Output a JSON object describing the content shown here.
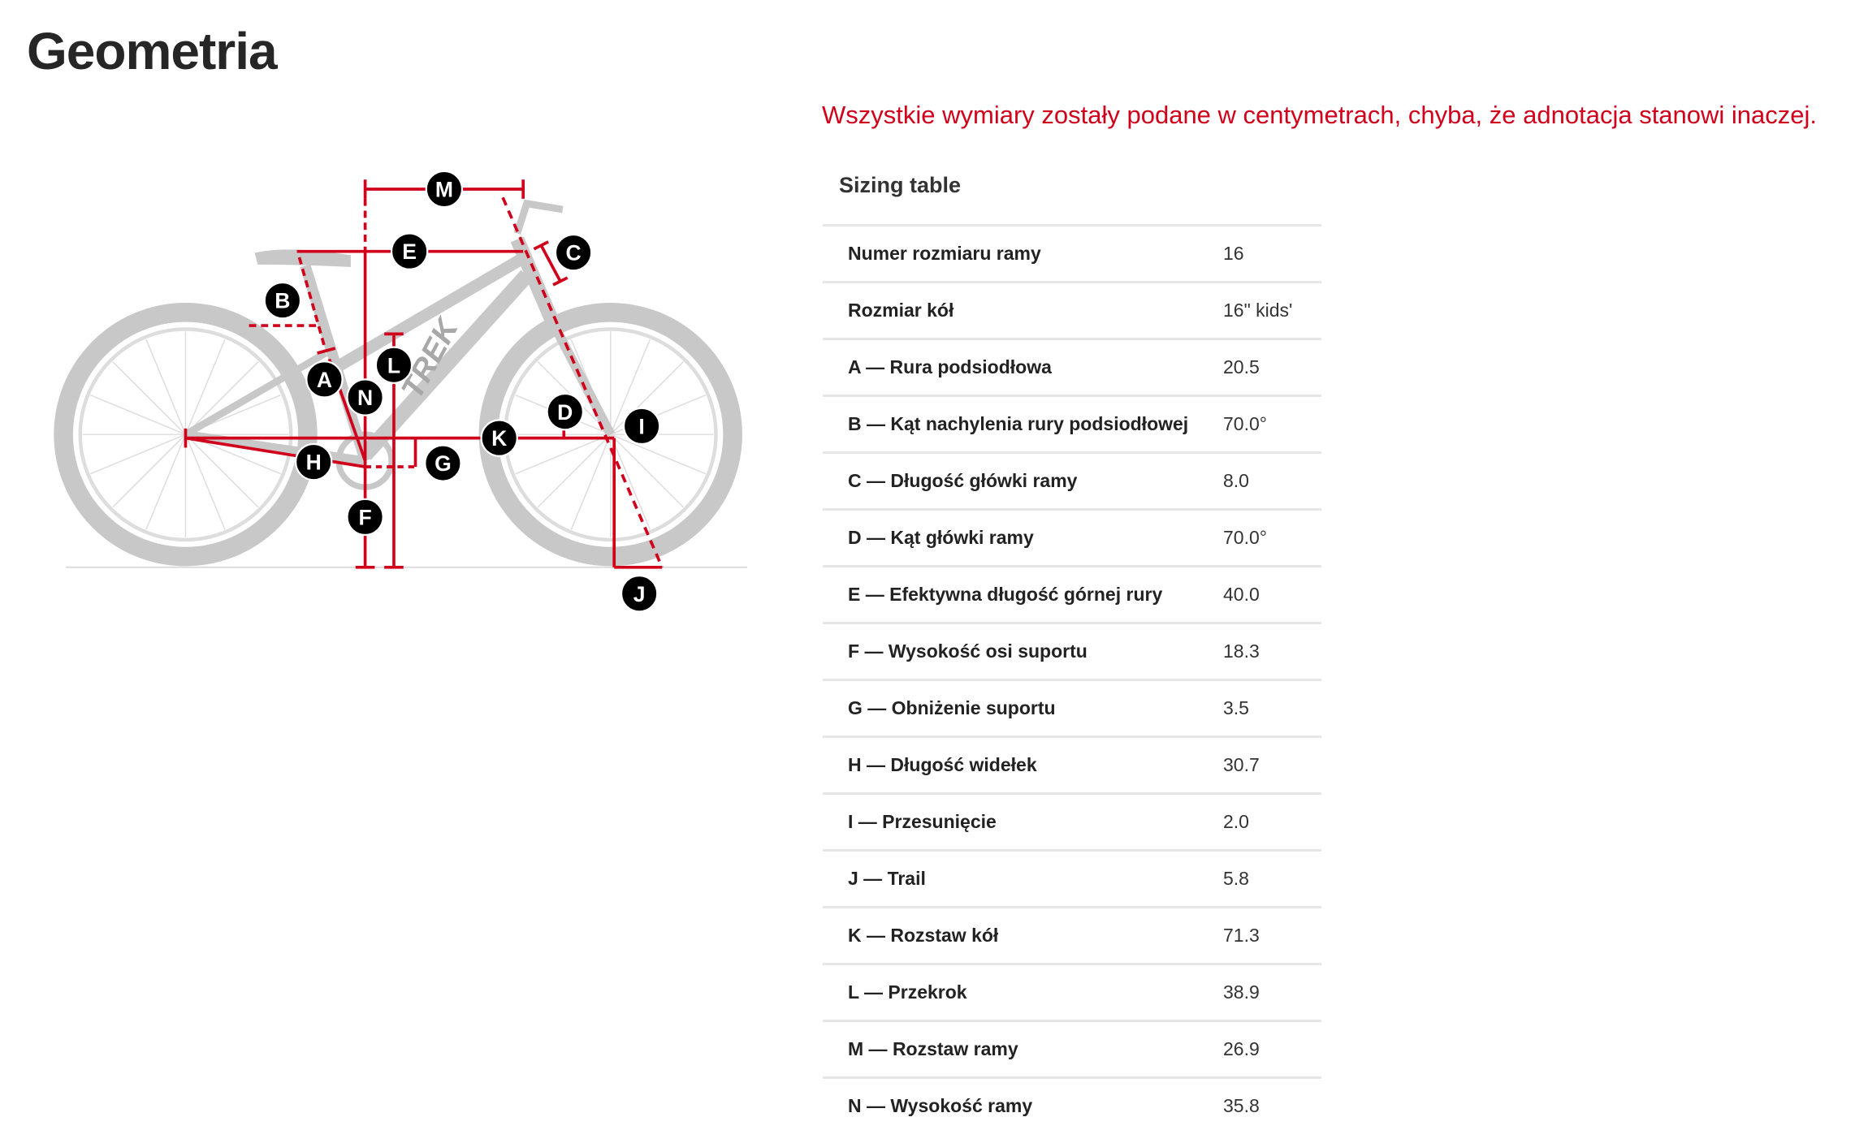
{
  "page_title": "Geometria",
  "note": "Wszystkie wymiary zostały podane w centymetrach, chyba, że adnotacja stanowi inaczej.",
  "colors": {
    "accent": "#d0021b",
    "bike": "#c4c4c4",
    "label_bg": "#000000"
  },
  "diagram": {
    "labels": [
      "M",
      "E",
      "C",
      "B",
      "A",
      "L",
      "N",
      "D",
      "I",
      "K",
      "H",
      "G",
      "F",
      "J"
    ],
    "brand_on_frame": "TREK"
  },
  "sizing_table": {
    "title": "Sizing table",
    "rows": [
      {
        "label": "Numer rozmiaru ramy",
        "value": "16"
      },
      {
        "label": "Rozmiar kół",
        "value": "16\" kids'"
      },
      {
        "label": "A — Rura podsiodłowa",
        "value": "20.5"
      },
      {
        "label": "B — Kąt nachylenia rury podsiodłowej",
        "value": "70.0°"
      },
      {
        "label": "C — Długość główki ramy",
        "value": "8.0"
      },
      {
        "label": "D — Kąt główki ramy",
        "value": "70.0°"
      },
      {
        "label": "E — Efektywna długość górnej rury",
        "value": "40.0"
      },
      {
        "label": "F — Wysokość osi suportu",
        "value": "18.3"
      },
      {
        "label": "G — Obniżenie suportu",
        "value": "3.5"
      },
      {
        "label": "H — Długość widełek",
        "value": "30.7"
      },
      {
        "label": "I — Przesunięcie",
        "value": "2.0"
      },
      {
        "label": "J — Trail",
        "value": "5.8"
      },
      {
        "label": "K — Rozstaw kół",
        "value": "71.3"
      },
      {
        "label": "L — Przekrok",
        "value": "38.9"
      },
      {
        "label": "M — Rozstaw ramy",
        "value": "26.9"
      },
      {
        "label": "N — Wysokość ramy",
        "value": "35.8"
      }
    ]
  }
}
